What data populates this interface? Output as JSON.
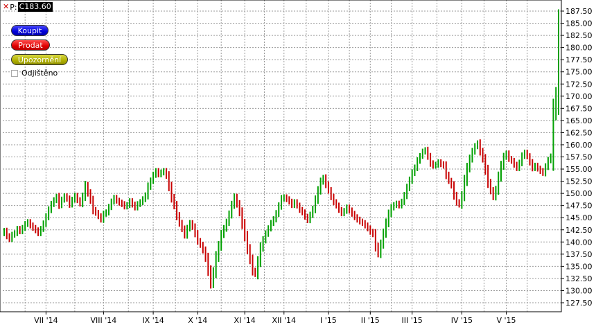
{
  "topbar": {
    "close": "✕",
    "symbol": "P:",
    "price": "C183.60"
  },
  "buttons": {
    "buy": "Koupit",
    "sell": "Prodat",
    "alert": "Upozornění"
  },
  "hedge": {
    "label": "Odjištěno",
    "checked": false
  },
  "colors": {
    "up": "#00a000",
    "down": "#c80000",
    "grid": "#9a9a9a"
  },
  "chart_data": {
    "type": "ohlc",
    "y_ticks": [
      "187.50",
      "185.00",
      "182.50",
      "180.00",
      "177.50",
      "175.00",
      "172.50",
      "170.00",
      "167.50",
      "165.00",
      "162.50",
      "160.00",
      "157.50",
      "155.00",
      "152.50",
      "150.00",
      "147.50",
      "145.00",
      "142.50",
      "140.00",
      "137.50",
      "135.00",
      "132.50",
      "130.00",
      "127.50"
    ],
    "ylim": [
      126,
      189
    ],
    "x_ticks": [
      "VII '14",
      "VIII '14",
      "IX '14",
      "X '14",
      "XI '14",
      "XII '14",
      "I '15",
      "II '15",
      "III '15",
      "IV '15",
      "V '15"
    ],
    "x_tick_index": [
      16,
      38,
      57,
      74,
      92,
      107,
      124,
      140,
      156,
      175,
      192
    ],
    "closes": [
      142.3,
      141.2,
      140.6,
      141.5,
      141.8,
      142.7,
      142.2,
      142.9,
      143.7,
      144.1,
      143.4,
      142.9,
      142.4,
      141.8,
      142.7,
      143.8,
      145.2,
      146.6,
      147.8,
      148.6,
      149.3,
      147.6,
      148.7,
      149.4,
      148.9,
      147.7,
      148.7,
      149.5,
      148.6,
      147.9,
      149.4,
      151.6,
      150.1,
      148.6,
      146.6,
      146.0,
      145.3,
      144.6,
      145.8,
      146.1,
      147.2,
      148.3,
      149.1,
      148.5,
      148.1,
      147.8,
      147.3,
      147.6,
      148.4,
      147.7,
      147.1,
      147.8,
      148.2,
      148.8,
      149.6,
      151.4,
      152.6,
      153.8,
      154.6,
      153.9,
      154.3,
      154.6,
      153.6,
      151.4,
      149.1,
      147.5,
      145.4,
      143.9,
      142.7,
      141.4,
      142.8,
      143.9,
      143.1,
      141.7,
      140.2,
      139.4,
      138.3,
      136.7,
      134.1,
      131.5,
      133.8,
      136.9,
      139.2,
      141.5,
      142.8,
      144.1,
      145.7,
      147.6,
      149.2,
      147.8,
      146.1,
      143.7,
      141.2,
      138.6,
      136.4,
      134.1,
      133.4,
      136.0,
      138.8,
      140.4,
      141.7,
      142.8,
      143.9,
      144.7,
      145.9,
      147.4,
      148.9,
      149.2,
      148.8,
      148.3,
      147.6,
      148.2,
      147.5,
      146.6,
      146.1,
      145.2,
      144.5,
      145.6,
      146.8,
      148.7,
      150.6,
      152.4,
      153.2,
      151.8,
      150.6,
      149.3,
      148.2,
      147.5,
      146.6,
      145.9,
      146.4,
      147.1,
      146.5,
      145.8,
      145.1,
      144.6,
      144.2,
      143.9,
      143.4,
      142.8,
      142.1,
      141.6,
      139.1,
      137.6,
      139.6,
      141.8,
      143.9,
      145.8,
      147.1,
      147.6,
      147.9,
      147.5,
      148.3,
      149.6,
      151.2,
      152.7,
      154.2,
      155.3,
      156.7,
      157.7,
      158.6,
      158.9,
      157.6,
      156.2,
      155.7,
      155.9,
      156.4,
      156.0,
      155.7,
      153.8,
      152.6,
      151.6,
      149.6,
      148.2,
      147.7,
      149.6,
      152.6,
      155.2,
      157.1,
      158.6,
      159.7,
      160.3,
      158.6,
      157.1,
      154.8,
      152.2,
      150.6,
      149.3,
      150.8,
      153.4,
      155.7,
      157.5,
      158.2,
      157.1,
      156.7,
      155.9,
      155.2,
      156.3,
      157.7,
      158.4,
      157.6,
      156.4,
      155.2,
      155.7,
      155.1,
      154.6,
      154.2,
      155.5,
      156.8,
      157.6,
      166.5,
      170.4,
      183.6
    ]
  }
}
